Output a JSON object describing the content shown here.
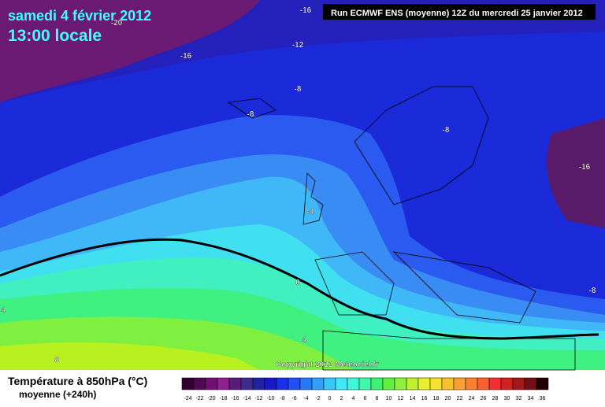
{
  "map": {
    "title": "samedi 4 février 2012",
    "time": "13:00 locale",
    "run": "Run ECMWF ENS (moyenne) 12Z du mercredi 25 janvier 2012",
    "copyright": "Copyright 2012 Meteociel.fr",
    "contour_labels": [
      "-16",
      "-20",
      "-16",
      "-12",
      "-8",
      "-8",
      "-8",
      "-16",
      "-4",
      "0",
      "-8",
      "4",
      "4",
      "8"
    ]
  },
  "legend": {
    "title": "Température à 850hPa (°C)",
    "subtitle": "moyenne  (+240h)",
    "ticks": [
      -24,
      -22,
      -20,
      -18,
      -16,
      -14,
      -12,
      -10,
      -8,
      -6,
      -4,
      -2,
      0,
      2,
      4,
      6,
      8,
      10,
      12,
      14,
      16,
      18,
      20,
      22,
      24,
      26,
      28,
      30,
      32,
      34,
      36
    ],
    "colors": [
      "#300030",
      "#500850",
      "#701070",
      "#902090",
      "#5a1a78",
      "#3c2a8c",
      "#2020a0",
      "#1818c8",
      "#1a30e8",
      "#2050f5",
      "#2878f5",
      "#30a0f8",
      "#38c8f8",
      "#40e8f8",
      "#40f8d8",
      "#40f8a8",
      "#40f070",
      "#60f040",
      "#90f040",
      "#c0f030",
      "#e8f030",
      "#f8e030",
      "#f8c030",
      "#f8a030",
      "#f88030",
      "#f86030",
      "#f03030",
      "#d02020",
      "#a01818",
      "#701010",
      "#200000"
    ]
  }
}
